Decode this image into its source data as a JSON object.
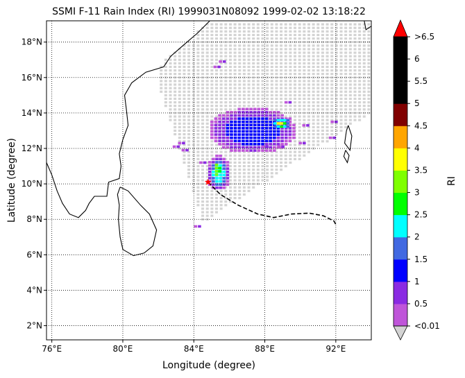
{
  "chart_data": {
    "type": "heatmap",
    "title": "SSMI F-11 Rain Index (RI) 1999031N08092 1999-02-02 13:18:22",
    "xlabel": "Longitude (degree)",
    "ylabel": "Latitude (degree)",
    "xlim": [
      75.7,
      94.0
    ],
    "ylim": [
      1.2,
      19.2
    ],
    "x_ticks": [
      "76°E",
      "80°E",
      "84°E",
      "88°E",
      "92°E"
    ],
    "x_tick_values": [
      76,
      80,
      84,
      88,
      92
    ],
    "y_ticks": [
      "2°N",
      "4°N",
      "6°N",
      "8°N",
      "10°N",
      "12°N",
      "14°N",
      "16°N",
      "18°N"
    ],
    "y_tick_values": [
      2,
      4,
      6,
      8,
      10,
      12,
      14,
      16,
      18
    ],
    "grid": true,
    "colorbar": {
      "label": "RI",
      "tick_labels": [
        "<0.01",
        "0.5",
        "1",
        "1.5",
        "2",
        "2.5",
        "3",
        "3.5",
        "4",
        "4.5",
        "5",
        "5.5",
        "6",
        ">6.5"
      ],
      "colors": [
        "#bf55d9",
        "#8a2be2",
        "#0000ff",
        "#4169e1",
        "#00ffff",
        "#00ff00",
        "#7fff00",
        "#ffff00",
        "#ffa500",
        "#800000",
        "#000000",
        "#000000",
        "#000000"
      ],
      "under_color": "#d3d3d3",
      "over_color": "#ff0000",
      "no_rain_color": "#d3d3d3"
    },
    "storm_center": {
      "lon": 84.8,
      "lat": 10.1
    },
    "track": [
      [
        84.8,
        10.1
      ],
      [
        85.5,
        9.4
      ],
      [
        86.5,
        8.8
      ],
      [
        87.6,
        8.3
      ],
      [
        88.5,
        8.1
      ],
      [
        89.5,
        8.3
      ],
      [
        90.5,
        8.35
      ],
      [
        91.3,
        8.2
      ],
      [
        91.9,
        7.9
      ],
      [
        92.0,
        7.7
      ]
    ],
    "coastlines": {
      "india": [
        [
          75.7,
          11.2
        ],
        [
          76.0,
          10.5
        ],
        [
          76.3,
          9.6
        ],
        [
          76.6,
          8.9
        ],
        [
          77.0,
          8.3
        ],
        [
          77.5,
          8.1
        ],
        [
          77.9,
          8.5
        ],
        [
          78.1,
          8.9
        ],
        [
          78.4,
          9.3
        ],
        [
          79.1,
          9.3
        ],
        [
          79.2,
          10.1
        ],
        [
          79.8,
          10.3
        ],
        [
          79.9,
          11.0
        ],
        [
          79.8,
          11.7
        ],
        [
          80.0,
          12.5
        ],
        [
          80.3,
          13.3
        ],
        [
          80.2,
          14.2
        ],
        [
          80.1,
          15.0
        ],
        [
          80.5,
          15.7
        ],
        [
          81.3,
          16.3
        ],
        [
          82.3,
          16.6
        ],
        [
          82.7,
          17.2
        ],
        [
          83.5,
          17.9
        ],
        [
          84.2,
          18.5
        ],
        [
          84.9,
          19.2
        ]
      ],
      "sri_lanka": [
        [
          79.85,
          9.82
        ],
        [
          79.7,
          9.4
        ],
        [
          79.8,
          8.8
        ],
        [
          79.75,
          8.0
        ],
        [
          79.85,
          7.0
        ],
        [
          80.0,
          6.3
        ],
        [
          80.6,
          5.95
        ],
        [
          81.2,
          6.1
        ],
        [
          81.7,
          6.5
        ],
        [
          81.9,
          7.4
        ],
        [
          81.5,
          8.3
        ],
        [
          81.0,
          8.8
        ],
        [
          80.3,
          9.6
        ],
        [
          79.85,
          9.82
        ]
      ],
      "andaman_north": [
        [
          92.7,
          13.3
        ],
        [
          92.9,
          12.7
        ],
        [
          92.8,
          11.9
        ],
        [
          92.5,
          12.3
        ],
        [
          92.6,
          13.0
        ],
        [
          92.7,
          13.3
        ]
      ],
      "andaman_mid": [
        [
          92.55,
          11.9
        ],
        [
          92.75,
          11.6
        ],
        [
          92.65,
          11.2
        ],
        [
          92.45,
          11.55
        ],
        [
          92.55,
          11.9
        ]
      ],
      "myanmar": [
        [
          93.6,
          19.2
        ],
        [
          93.7,
          18.7
        ],
        [
          94.0,
          18.9
        ]
      ]
    }
  }
}
